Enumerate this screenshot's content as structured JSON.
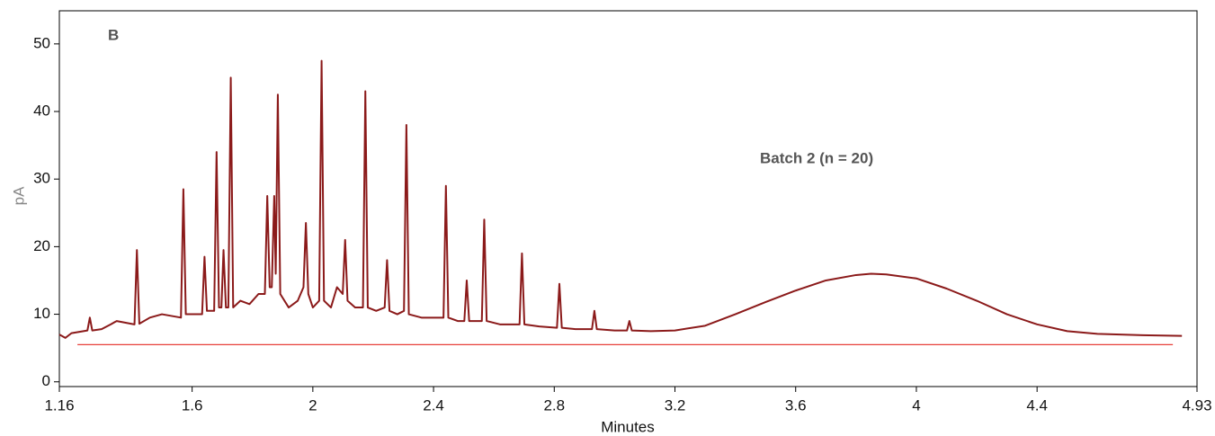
{
  "chart_data": {
    "type": "line",
    "xlabel": "Minutes",
    "ylabel": "pA",
    "annotations": [
      "B",
      "Batch 2 (n = 20)"
    ],
    "xlim": [
      1.16,
      4.93
    ],
    "xticks": [
      1.16,
      1.6,
      2.0,
      2.4,
      2.8,
      3.2,
      3.6,
      4.0,
      4.4,
      4.93
    ],
    "ylim": [
      -0.7,
      54.9
    ],
    "yticks": [
      0,
      10,
      20,
      30,
      40,
      50
    ],
    "grid": false,
    "series": [
      {
        "color": "#8b1a1a",
        "x": [
          1.16,
          1.18,
          1.2,
          1.24,
          1.253,
          1.261,
          1.269,
          1.3,
          1.33,
          1.35,
          1.409,
          1.417,
          1.425,
          1.46,
          1.5,
          1.563,
          1.571,
          1.579,
          1.6,
          1.633,
          1.641,
          1.649,
          1.673,
          1.681,
          1.689,
          1.697,
          1.704,
          1.712,
          1.72,
          1.728,
          1.736,
          1.76,
          1.79,
          1.82,
          1.841,
          1.849,
          1.857,
          1.864,
          1.872,
          1.877,
          1.884,
          1.892,
          1.92,
          1.95,
          1.969,
          1.977,
          1.985,
          2.0,
          2.021,
          2.029,
          2.037,
          2.06,
          2.08,
          2.099,
          2.107,
          2.115,
          2.14,
          2.166,
          2.174,
          2.182,
          2.21,
          2.238,
          2.246,
          2.254,
          2.28,
          2.302,
          2.31,
          2.318,
          2.36,
          2.4,
          2.433,
          2.441,
          2.449,
          2.48,
          2.502,
          2.51,
          2.518,
          2.55,
          2.56,
          2.568,
          2.576,
          2.62,
          2.685,
          2.693,
          2.701,
          2.75,
          2.809,
          2.817,
          2.825,
          2.87,
          2.925,
          2.933,
          2.941,
          3.0,
          3.041,
          3.049,
          3.057,
          3.12,
          3.2,
          3.3,
          3.4,
          3.5,
          3.6,
          3.7,
          3.8,
          3.85,
          3.9,
          4.0,
          4.1,
          4.2,
          4.3,
          4.4,
          4.5,
          4.6,
          4.75,
          4.88
        ],
        "values": [
          7.0,
          6.5,
          7.2,
          7.5,
          7.6,
          9.5,
          7.6,
          7.8,
          8.5,
          9,
          8.5,
          19.5,
          8.6,
          9.5,
          10,
          9.5,
          28.5,
          10,
          10,
          10,
          18.5,
          10.5,
          10.5,
          34,
          11,
          11,
          19.5,
          11,
          11,
          45,
          11,
          12,
          11.5,
          13,
          13,
          27.5,
          14,
          14,
          27.5,
          16,
          42.5,
          13,
          11,
          12,
          14,
          23.5,
          13,
          11,
          12,
          47.5,
          12,
          11,
          14,
          13,
          21,
          12,
          11,
          11,
          43,
          11,
          10.5,
          11,
          18,
          10.5,
          10,
          10.5,
          38,
          10,
          9.5,
          9.5,
          9.5,
          29,
          9.5,
          9,
          9,
          15,
          9,
          9,
          9,
          24,
          9,
          8.5,
          8.5,
          19,
          8.5,
          8.2,
          8,
          14.5,
          8,
          7.8,
          7.8,
          10.5,
          7.8,
          7.6,
          7.6,
          9,
          7.6,
          7.5,
          7.6,
          8.3,
          10,
          11.8,
          13.5,
          15,
          15.8,
          16,
          15.9,
          15.3,
          13.8,
          12,
          10,
          8.5,
          7.5,
          7.1,
          6.9,
          6.8
        ]
      },
      {
        "color": "#e8403a",
        "x": [
          1.22,
          4.85
        ],
        "values": [
          5.5,
          5.5
        ]
      }
    ]
  }
}
